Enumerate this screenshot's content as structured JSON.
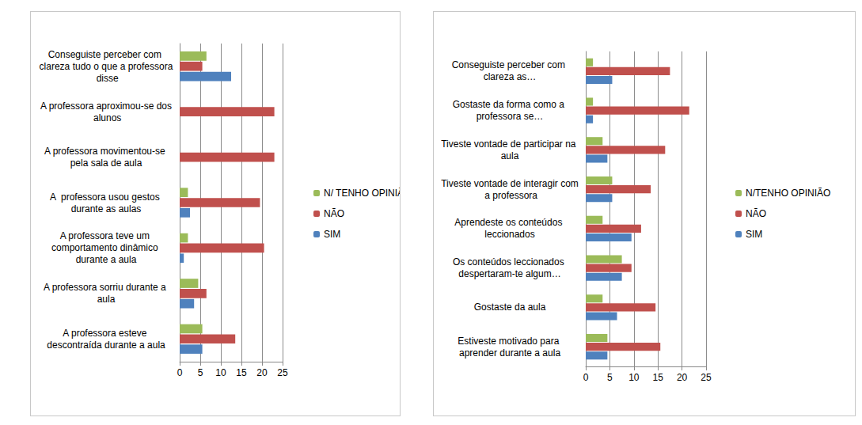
{
  "chart_data": [
    {
      "type": "bar",
      "orientation": "horizontal",
      "grid": true,
      "legend": "right",
      "categories": [
        "A professora esteve descontraída durante a aula",
        "A professora sorriu durante a aula",
        "A professora teve um comportamento dinâmico durante a aula",
        "A  professora usou gestos durante as aulas",
        "A professora movimentou-se pela sala de aula",
        "A professora aproximou-se dos alunos",
        "Conseguiste perceber com clareza tudo o que a professora disse"
      ],
      "series": [
        {
          "name": "N/ TENHO OPINIÃO",
          "color": "#9bbb59",
          "values": [
            5.5,
            4.5,
            2,
            2,
            0,
            0,
            6.5
          ]
        },
        {
          "name": "NÃO",
          "color": "#c0504d",
          "values": [
            13.5,
            6.5,
            20.5,
            19.5,
            23,
            23,
            5.5
          ]
        },
        {
          "name": "SIM",
          "color": "#4f81bd",
          "values": [
            5.5,
            3.5,
            1,
            2.5,
            0,
            0,
            12.5
          ]
        }
      ],
      "xlim": [
        0,
        25
      ],
      "xticks": [
        0,
        5,
        10,
        15,
        20,
        25
      ]
    },
    {
      "type": "bar",
      "orientation": "horizontal",
      "grid": true,
      "legend": "right",
      "categories": [
        "Estiveste motivado para aprender durante a aula",
        "Gostaste da aula",
        "Os conteúdos leccionados despertaram-te algum…",
        "Aprendeste os conteúdos leccionados",
        "Tiveste vontade de interagir com a professora",
        "Tiveste vontade de participar na aula",
        "Gostaste da forma como a professora se…",
        "Conseguiste perceber com clareza as…"
      ],
      "series": [
        {
          "name": "N/TENHO OPINIÃO",
          "color": "#9bbb59",
          "values": [
            4.5,
            3.5,
            7.5,
            3.5,
            5.5,
            3.5,
            1.5,
            1.5
          ]
        },
        {
          "name": "NÃO",
          "color": "#c0504d",
          "values": [
            15.5,
            14.5,
            9.5,
            11.5,
            13.5,
            16.5,
            21.5,
            17.5
          ]
        },
        {
          "name": "SIM",
          "color": "#4f81bd",
          "values": [
            4.5,
            6.5,
            7.5,
            9.5,
            5.5,
            4.5,
            1.5,
            5.5
          ]
        }
      ],
      "xlim": [
        0,
        25
      ],
      "xticks": [
        0,
        5,
        10,
        15,
        20,
        25
      ]
    }
  ]
}
